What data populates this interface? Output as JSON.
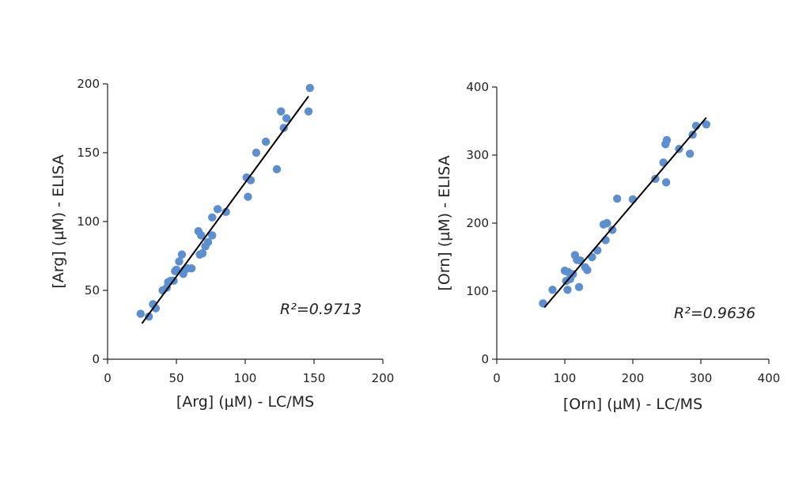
{
  "chart_data": [
    {
      "type": "scatter",
      "title": "",
      "xlabel": "[Arg] (µM) - LC/MS",
      "ylabel": "[Arg] (µM) - ELISA",
      "xlim": [
        0,
        200
      ],
      "ylim": [
        0,
        200
      ],
      "xticks": [
        "0",
        "50",
        "100",
        "150",
        "200"
      ],
      "yticks": [
        "0",
        "50",
        "100",
        "150",
        "200"
      ],
      "annotation": "R²=0.9713",
      "point_color": "#5B8FD0",
      "grid": false,
      "trendline": {
        "x": [
          25,
          146
        ],
        "y": [
          26,
          191
        ]
      },
      "points": [
        {
          "x": 24,
          "y": 33
        },
        {
          "x": 30,
          "y": 31
        },
        {
          "x": 33,
          "y": 40
        },
        {
          "x": 35,
          "y": 37
        },
        {
          "x": 40,
          "y": 50
        },
        {
          "x": 43,
          "y": 52
        },
        {
          "x": 44,
          "y": 56
        },
        {
          "x": 46,
          "y": 57
        },
        {
          "x": 48,
          "y": 57
        },
        {
          "x": 49,
          "y": 64
        },
        {
          "x": 50,
          "y": 65
        },
        {
          "x": 52,
          "y": 71
        },
        {
          "x": 54,
          "y": 76
        },
        {
          "x": 55,
          "y": 62
        },
        {
          "x": 56,
          "y": 65
        },
        {
          "x": 58,
          "y": 66
        },
        {
          "x": 61,
          "y": 66
        },
        {
          "x": 66,
          "y": 93
        },
        {
          "x": 67,
          "y": 76
        },
        {
          "x": 68,
          "y": 90
        },
        {
          "x": 69,
          "y": 77
        },
        {
          "x": 71,
          "y": 82
        },
        {
          "x": 73,
          "y": 85
        },
        {
          "x": 76,
          "y": 90
        },
        {
          "x": 76,
          "y": 103
        },
        {
          "x": 80,
          "y": 109
        },
        {
          "x": 86,
          "y": 107
        },
        {
          "x": 101,
          "y": 132
        },
        {
          "x": 102,
          "y": 118
        },
        {
          "x": 104,
          "y": 130
        },
        {
          "x": 108,
          "y": 150
        },
        {
          "x": 115,
          "y": 158
        },
        {
          "x": 123,
          "y": 138
        },
        {
          "x": 126,
          "y": 180
        },
        {
          "x": 128,
          "y": 168
        },
        {
          "x": 130,
          "y": 175
        },
        {
          "x": 146,
          "y": 180
        },
        {
          "x": 147,
          "y": 197
        }
      ]
    },
    {
      "type": "scatter",
      "title": "",
      "xlabel": "[Orn] (µM) - LC/MS",
      "ylabel": "[Orn] (µM) - ELISA",
      "xlim": [
        0,
        400
      ],
      "ylim": [
        0,
        400
      ],
      "xticks": [
        "0",
        "100",
        "200",
        "300",
        "400"
      ],
      "yticks": [
        "0",
        "100",
        "200",
        "300",
        "400"
      ],
      "annotation": "R²=0.9636",
      "point_color": "#5B8FD0",
      "grid": false,
      "trendline": {
        "x": [
          70,
          308
        ],
        "y": [
          76,
          355
        ]
      },
      "points": [
        {
          "x": 68,
          "y": 82
        },
        {
          "x": 82,
          "y": 102
        },
        {
          "x": 100,
          "y": 130
        },
        {
          "x": 102,
          "y": 115
        },
        {
          "x": 104,
          "y": 102
        },
        {
          "x": 105,
          "y": 128
        },
        {
          "x": 108,
          "y": 118
        },
        {
          "x": 112,
          "y": 125
        },
        {
          "x": 115,
          "y": 153
        },
        {
          "x": 118,
          "y": 146
        },
        {
          "x": 121,
          "y": 106
        },
        {
          "x": 123,
          "y": 145
        },
        {
          "x": 130,
          "y": 135
        },
        {
          "x": 133,
          "y": 131
        },
        {
          "x": 140,
          "y": 150
        },
        {
          "x": 148,
          "y": 160
        },
        {
          "x": 157,
          "y": 198
        },
        {
          "x": 160,
          "y": 175
        },
        {
          "x": 162,
          "y": 200
        },
        {
          "x": 170,
          "y": 190
        },
        {
          "x": 177,
          "y": 236
        },
        {
          "x": 200,
          "y": 235
        },
        {
          "x": 233,
          "y": 265
        },
        {
          "x": 245,
          "y": 289
        },
        {
          "x": 248,
          "y": 316
        },
        {
          "x": 249,
          "y": 260
        },
        {
          "x": 250,
          "y": 322
        },
        {
          "x": 268,
          "y": 309
        },
        {
          "x": 284,
          "y": 302
        },
        {
          "x": 288,
          "y": 330
        },
        {
          "x": 293,
          "y": 343
        },
        {
          "x": 308,
          "y": 345
        }
      ]
    }
  ]
}
